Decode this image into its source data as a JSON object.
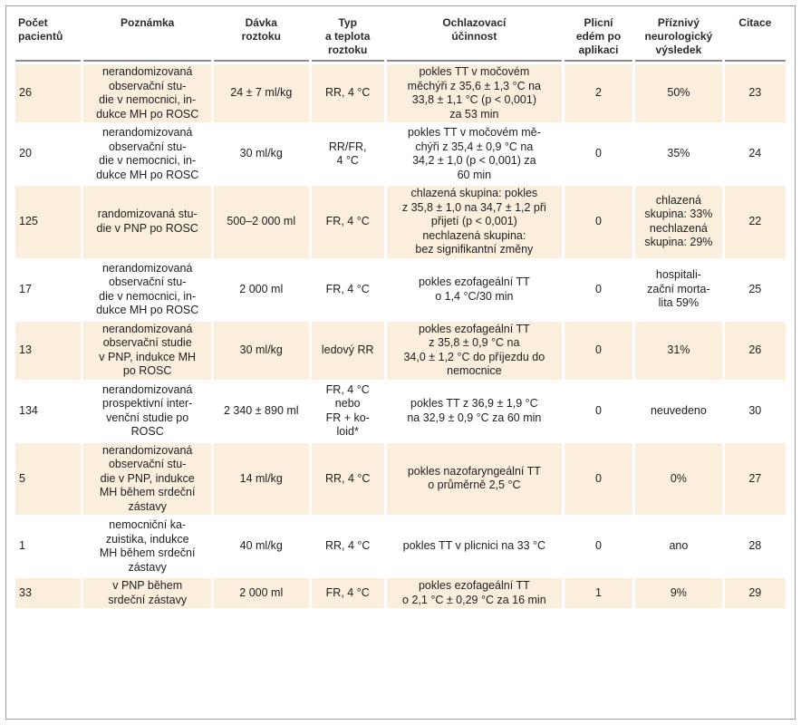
{
  "headers": [
    "Počet pacientů",
    "Poznámka",
    "Dávka roztoku",
    "Typ a teplota roztoku",
    "Ochlazovací účinnost",
    "Plicní edém po aplikaci",
    "Příznivý neurologický výsledek",
    "Citace"
  ],
  "header_lines": [
    [
      "Počet",
      "pacientů"
    ],
    [
      "Poznámka"
    ],
    [
      "Dávka",
      "roztoku"
    ],
    [
      "Typ",
      "a teplota",
      "roztoku"
    ],
    [
      "Ochlazovací",
      "účinnost"
    ],
    [
      "Plicní",
      "edém po",
      "aplikaci"
    ],
    [
      "Příznivý",
      "neurologický",
      "výsledek"
    ],
    [
      "Citace"
    ]
  ],
  "rows": [
    {
      "shaded": true,
      "height": 68,
      "cells": [
        [
          "26"
        ],
        [
          "nerandomizovaná",
          "observační stu-",
          "die v nemocnici, in-",
          "dukce MH po ROSC"
        ],
        [
          "24 ± 7 ml/kg"
        ],
        [
          "RR, 4 °C"
        ],
        [
          "pokles TT v močovém",
          "měchýři z 35,6 ± 1,3 °C na",
          "33,8 ± 1,1 °C (p < 0,001)",
          "za 53 min"
        ],
        [
          "2"
        ],
        [
          "50%"
        ],
        [
          "23"
        ]
      ]
    },
    {
      "shaded": false,
      "height": 68,
      "cells": [
        [
          "20"
        ],
        [
          "nerandomizovaná",
          "observační stu-",
          "die v nemocnici, in-",
          "dukce MH po ROSC"
        ],
        [
          "30 ml/kg"
        ],
        [
          "RR/FR,",
          "4 °C"
        ],
        [
          "pokles TT v močovém mě-",
          "chýři z 35,4 ± 0,9 °C na",
          "34,2 ± 1,0 (p < 0,001) za",
          "60 min"
        ],
        [
          "0"
        ],
        [
          "35%"
        ],
        [
          "24"
        ]
      ]
    },
    {
      "shaded": true,
      "height": 94,
      "cells": [
        [
          "125"
        ],
        [
          "randomizovaná stu-",
          "die v PNP po ROSC"
        ],
        [
          "500–2 000 ml"
        ],
        [
          "FR, 4 °C"
        ],
        [
          "chlazená skupina: pokles",
          "z 35,8 ± 1,0 na 34,7 ± 1,2 při",
          "přijetí (p < 0,001)",
          "nechlazená skupina:",
          "bez signifikantní změny"
        ],
        [
          "0"
        ],
        [
          "chlazená",
          "skupina: 33%",
          "nechlazená",
          "skupina: 29%"
        ],
        [
          "22"
        ]
      ]
    },
    {
      "shaded": false,
      "height": 68,
      "cells": [
        [
          "17"
        ],
        [
          "nerandomizovaná",
          "observační stu-",
          "die v nemocnici, in-",
          "dukce MH po ROSC"
        ],
        [
          "2 000 ml"
        ],
        [
          "FR, 4 °C"
        ],
        [
          "pokles ezofageální TT",
          "o 1,4 °C/30 min"
        ],
        [
          "0"
        ],
        [
          "hospitali-",
          "zační morta-",
          "lita 59%"
        ],
        [
          "25"
        ]
      ]
    },
    {
      "shaded": true,
      "height": 76,
      "cells": [
        [
          "13"
        ],
        [
          "nerandomizovaná",
          "observační studie",
          "v PNP, indukce MH",
          "po ROSC"
        ],
        [
          "30 ml/kg"
        ],
        [
          "ledový RR"
        ],
        [
          "pokles ezofageální TT",
          "z 35,8 ± 0,9 °C na",
          "34,0 ± 1,2 °C do příjezdu do",
          "nemocnice"
        ],
        [
          "0"
        ],
        [
          "31%"
        ],
        [
          "26"
        ]
      ]
    },
    {
      "shaded": false,
      "height": 72,
      "cells": [
        [
          "134"
        ],
        [
          "nerandomizovaná",
          "prospektivní inter-",
          "venční studie po",
          "ROSC"
        ],
        [
          "2 340 ± 890 ml"
        ],
        [
          "FR, 4 °C",
          "nebo",
          "FR + ko-",
          "loid*"
        ],
        [
          "pokles TT z 36,9 ± 1,9 °C",
          "na 32,9 ± 0,9 °C za 60 min"
        ],
        [
          "0"
        ],
        [
          "neuvedeno"
        ],
        [
          "30"
        ]
      ]
    },
    {
      "shaded": true,
      "height": 94,
      "cells": [
        [
          "5"
        ],
        [
          "nerandomizovaná",
          "observační stu-",
          "die v PNP, indukce",
          "MH během srdeční",
          "zástavy"
        ],
        [
          "14 ml/kg"
        ],
        [
          "RR, 4 °C"
        ],
        [
          "pokles nazofaryngeální TT",
          "o průměrně 2,5 °C"
        ],
        [
          "0"
        ],
        [
          "0%"
        ],
        [
          "27"
        ]
      ]
    },
    {
      "shaded": false,
      "height": 76,
      "cells": [
        [
          "1"
        ],
        [
          "nemocniční ka-",
          "zuistika, indukce",
          "MH během srdeční",
          "zástavy"
        ],
        [
          "40 ml/kg"
        ],
        [
          "RR, 4 °C"
        ],
        [
          "pokles TT v plicnici na 33 °C"
        ],
        [
          "0"
        ],
        [
          "ano"
        ],
        [
          "28"
        ]
      ]
    },
    {
      "shaded": true,
      "height": 42,
      "cells": [
        [
          "33"
        ],
        [
          "v PNP během",
          "srdeční zástavy"
        ],
        [
          "2 000 ml"
        ],
        [
          "FR, 4 °C"
        ],
        [
          "pokles ezofageální TT",
          "o 2,1 °C ± 0,29 °C za 16 min"
        ],
        [
          "1"
        ],
        [
          "9%"
        ],
        [
          "29"
        ]
      ]
    }
  ]
}
